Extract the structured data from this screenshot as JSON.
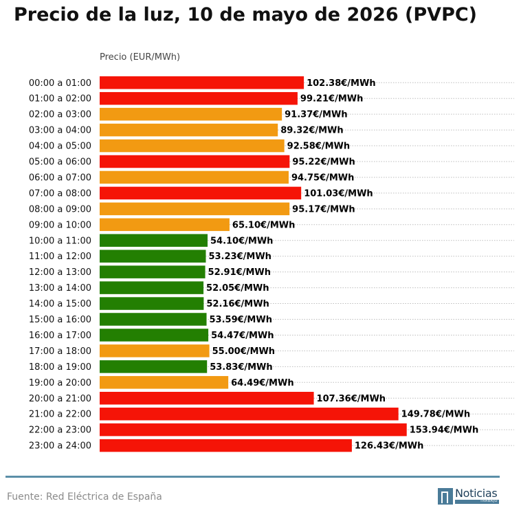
{
  "header": {
    "title": "Precio de la luz, 10 de mayo de 2026 (PVPC)"
  },
  "footer": {
    "source": "Fuente: Red Eléctrica de España",
    "logo_text": "Noticias",
    "logo_subtext": "TRABAJO"
  },
  "colors": {
    "high": "#f51407",
    "mid": "#f29a12",
    "low": "#237f02",
    "grid": "#bdbdbd",
    "rule": "#5b8fa8"
  },
  "chart_data": {
    "type": "bar",
    "orientation": "horizontal",
    "title": "Precio de la luz, 10 de mayo de 2026 (PVPC)",
    "xlabel": "Precio (EUR/MWh)",
    "ylabel": "",
    "xlim": [
      0,
      175
    ],
    "grid": "dotted horizontal",
    "value_suffix": "€/MWh",
    "categories": [
      "00:00 a 01:00",
      "01:00 a 02:00",
      "02:00 a 03:00",
      "03:00 a 04:00",
      "04:00 a 05:00",
      "05:00 a 06:00",
      "06:00 a 07:00",
      "07:00 a 08:00",
      "08:00 a 09:00",
      "09:00 a 10:00",
      "10:00 a 11:00",
      "11:00 a 12:00",
      "12:00 a 13:00",
      "13:00 a 14:00",
      "14:00 a 15:00",
      "15:00 a 16:00",
      "16:00 a 17:00",
      "17:00 a 18:00",
      "18:00 a 19:00",
      "19:00 a 20:00",
      "20:00 a 21:00",
      "21:00 a 22:00",
      "22:00 a 23:00",
      "23:00 a 24:00"
    ],
    "values": [
      102.38,
      99.21,
      91.37,
      89.32,
      92.58,
      95.22,
      94.75,
      101.03,
      95.17,
      65.1,
      54.1,
      53.23,
      52.91,
      52.05,
      52.16,
      53.59,
      54.47,
      55.0,
      53.83,
      64.49,
      107.36,
      149.78,
      153.94,
      126.43
    ],
    "value_labels": [
      "102.38€/MWh",
      "99.21€/MWh",
      "91.37€/MWh",
      "89.32€/MWh",
      "92.58€/MWh",
      "95.22€/MWh",
      "94.75€/MWh",
      "101.03€/MWh",
      "95.17€/MWh",
      "65.10€/MWh",
      "54.10€/MWh",
      "53.23€/MWh",
      "52.91€/MWh",
      "52.05€/MWh",
      "52.16€/MWh",
      "53.59€/MWh",
      "54.47€/MWh",
      "55.00€/MWh",
      "53.83€/MWh",
      "64.49€/MWh",
      "107.36€/MWh",
      "149.78€/MWh",
      "153.94€/MWh",
      "126.43€/MWh"
    ],
    "bar_levels": [
      "high",
      "high",
      "mid",
      "mid",
      "mid",
      "high",
      "mid",
      "high",
      "mid",
      "mid",
      "low",
      "low",
      "low",
      "low",
      "low",
      "low",
      "low",
      "mid",
      "low",
      "mid",
      "high",
      "high",
      "high",
      "high"
    ]
  }
}
